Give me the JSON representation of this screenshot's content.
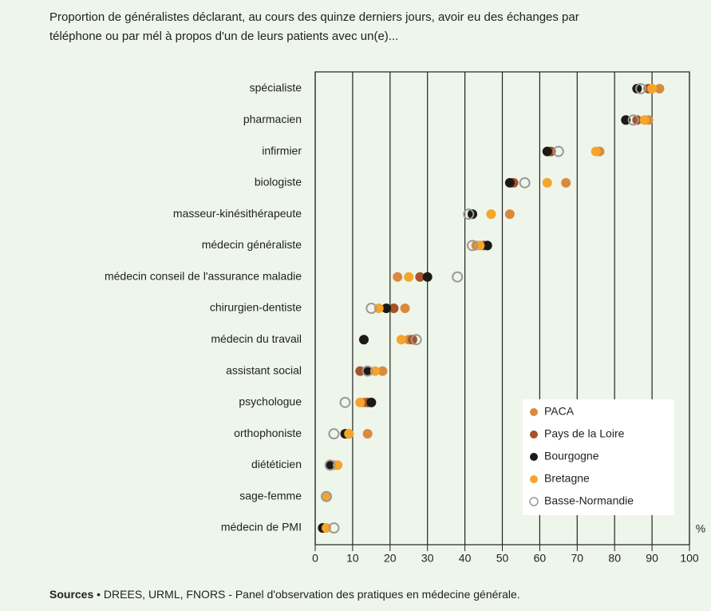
{
  "chart_data": {
    "type": "dot",
    "title": [
      "Proportion de généralistes déclarant, au cours des quinze derniers jours, avoir eu des échanges par",
      "téléphone ou par mél à propos d'un de leurs patients avec un(e)..."
    ],
    "categories": [
      "spécialiste",
      "pharmacien",
      "infirmier",
      "biologiste",
      "masseur-kinésithérapeute",
      "médecin généraliste",
      "médecin conseil de l'assurance maladie",
      "chirurgien-dentiste",
      "médecin du travail",
      "assistant social",
      "psychologue",
      "orthophoniste",
      "diététicien",
      "sage-femme",
      "médecin de PMI"
    ],
    "series": [
      {
        "name": "PACA",
        "color": "#d98a3e",
        "values": [
          92,
          89,
          76,
          67,
          52,
          43,
          22,
          24,
          25,
          18,
          13,
          14,
          5,
          3,
          2
        ]
      },
      {
        "name": "Pays de la Loire",
        "color": "#a5532a",
        "values": [
          89,
          86,
          63,
          53,
          42,
          45,
          28,
          21,
          26,
          12,
          14,
          9,
          4,
          3,
          2
        ]
      },
      {
        "name": "Bourgogne",
        "color": "#1c1a17",
        "values": [
          86,
          83,
          62,
          52,
          42,
          46,
          30,
          19,
          13,
          14,
          15,
          8,
          4,
          3,
          2
        ]
      },
      {
        "name": "Bretagne",
        "color": "#f4a52a",
        "values": [
          90,
          88,
          75,
          62,
          47,
          44,
          25,
          17,
          23,
          16,
          12,
          9,
          6,
          3,
          3
        ]
      },
      {
        "name": "Basse-Normandie",
        "color": "#9a9a9a",
        "hollow": true,
        "values": [
          87,
          85,
          65,
          56,
          41,
          42,
          38,
          15,
          27,
          14,
          8,
          5,
          4,
          3,
          5
        ]
      }
    ],
    "xlim": [
      0,
      100
    ],
    "xticks": [
      0,
      10,
      20,
      30,
      40,
      50,
      60,
      70,
      80,
      90,
      100
    ],
    "xlabel": "%",
    "grid": true,
    "legend": "lower right",
    "source_label": "Sources",
    "source": "• DREES, URML, FNORS - Panel d'observation des pratiques en médecine générale."
  }
}
